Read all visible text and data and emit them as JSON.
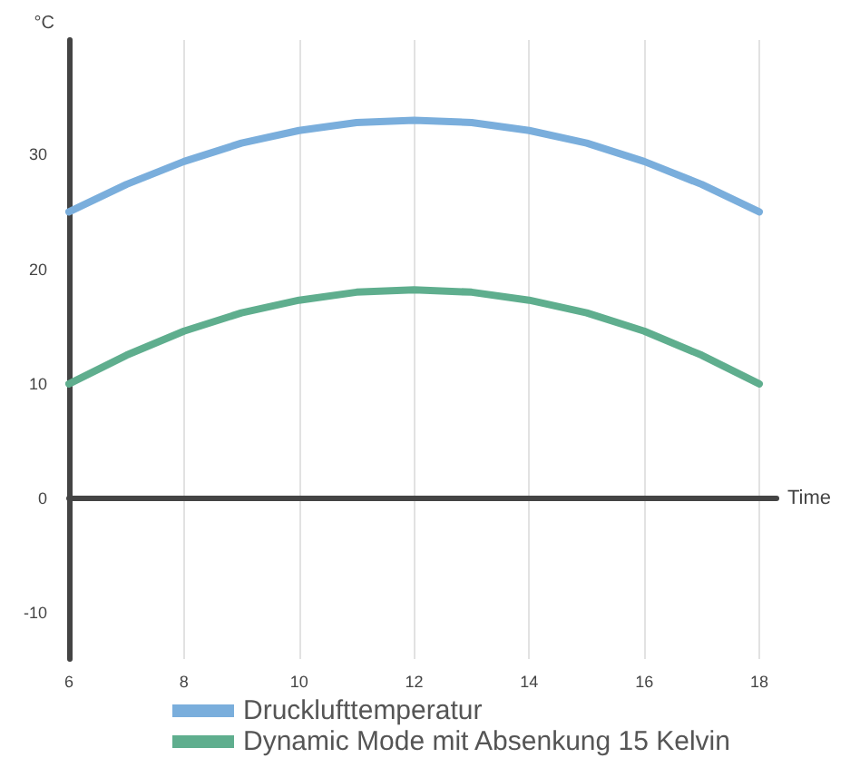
{
  "chart_data": {
    "type": "line",
    "ylabel": "°C",
    "xlabel": "Time",
    "x": [
      6,
      7,
      8,
      9,
      10,
      11,
      12,
      13,
      14,
      15,
      16,
      17,
      18
    ],
    "series": [
      {
        "name": "Drucklufttemperatur",
        "color": "#7aaedc",
        "values": [
          25,
          27.4,
          29.4,
          31,
          32.1,
          32.8,
          33,
          32.8,
          32.1,
          31,
          29.4,
          27.4,
          25
        ]
      },
      {
        "name": "Dynamic Mode mit Absenkung 15 Kelvin",
        "color": "#5fae8e",
        "values": [
          10,
          12.5,
          14.6,
          16.2,
          17.3,
          18,
          18.2,
          18,
          17.3,
          16.2,
          14.6,
          12.5,
          10
        ]
      }
    ],
    "xlim": [
      6,
      18.3
    ],
    "xticks": [
      6,
      8,
      10,
      12,
      14,
      16,
      18
    ],
    "ylim": [
      -14,
      40
    ],
    "yticks": [
      -10,
      0,
      10,
      20,
      30
    ],
    "grid": "x",
    "legend": "bottom left",
    "marker": "none",
    "line_style": "solid"
  }
}
